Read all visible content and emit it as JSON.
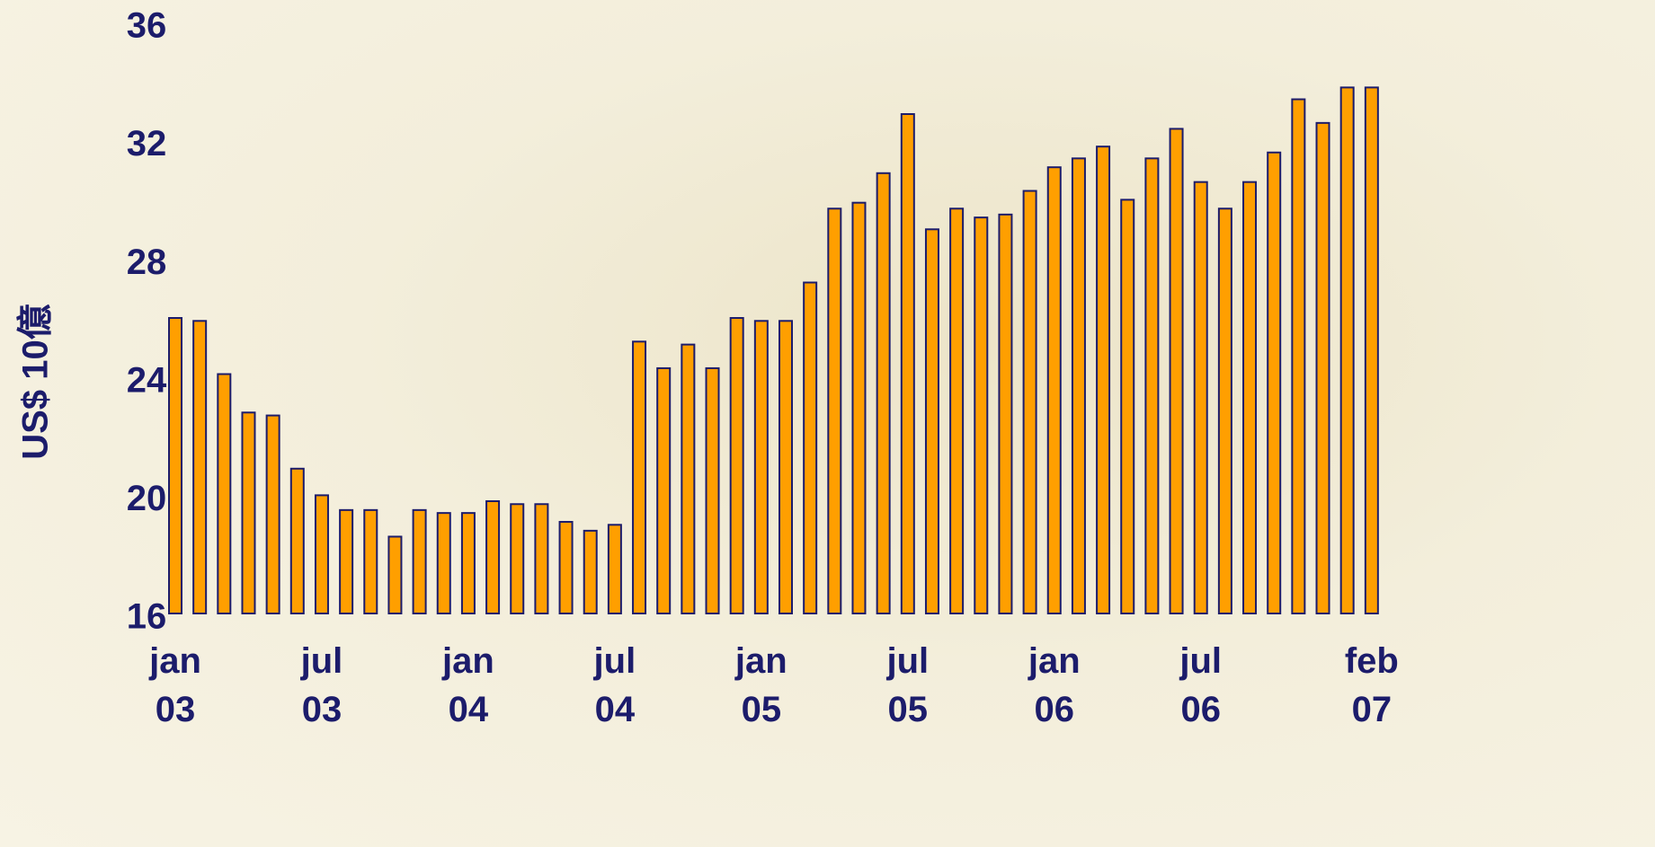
{
  "chart_data": {
    "type": "bar",
    "y_label": "US$ 10億",
    "categories": [
      "jan 03",
      null,
      null,
      null,
      null,
      null,
      "jul 03",
      null,
      null,
      null,
      null,
      null,
      "jan 04",
      null,
      null,
      null,
      null,
      null,
      "jul 04",
      null,
      null,
      null,
      null,
      null,
      "jan 05",
      null,
      null,
      null,
      null,
      null,
      "jul 05",
      null,
      null,
      null,
      null,
      null,
      "jan 06",
      null,
      null,
      null,
      null,
      null,
      "jul 06",
      null,
      null,
      null,
      null,
      null,
      null,
      "feb 07"
    ],
    "values": [
      26.0,
      25.9,
      24.1,
      22.8,
      22.7,
      20.9,
      20.0,
      19.5,
      19.5,
      18.6,
      19.5,
      19.4,
      19.4,
      19.8,
      19.7,
      19.7,
      19.1,
      18.8,
      19.0,
      25.2,
      24.3,
      25.1,
      24.3,
      26.0,
      25.9,
      25.9,
      27.2,
      29.7,
      29.9,
      30.9,
      32.9,
      29.0,
      29.7,
      29.4,
      29.5,
      30.3,
      31.1,
      31.4,
      31.8,
      30.0,
      31.4,
      32.4,
      30.6,
      29.7,
      30.6,
      31.6,
      33.4,
      32.6,
      33.8,
      33.8
    ],
    "color": "#ff9f00",
    "ylim": [
      16,
      36
    ],
    "yticks": [
      16,
      20,
      24,
      28,
      32,
      36
    ],
    "grid": false
  }
}
